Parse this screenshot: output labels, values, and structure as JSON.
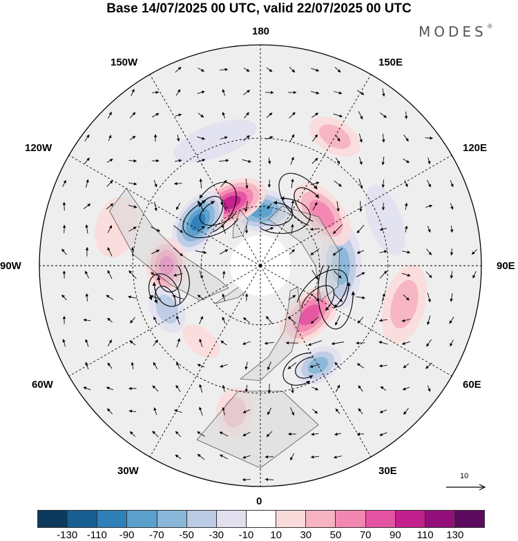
{
  "title": "Base 14/07/2025 00 UTC, valid 22/07/2025 00 UTC",
  "brand": "MODES",
  "brand_mark": "®",
  "longitude_labels": {
    "lon_180": "180",
    "lon_150e": "150E",
    "lon_120e": "120E",
    "lon_90e": "90E",
    "lon_60e": "60E",
    "lon_30e": "30E",
    "lon_0": "0",
    "lon_30w": "30W",
    "lon_60w": "60W",
    "lon_90w": "90W",
    "lon_120w": "120W",
    "lon_150w": "150W"
  },
  "reference_vector_value": "10",
  "colorbar": {
    "colors": [
      "#0d3a5c",
      "#1a5f91",
      "#2f7fb8",
      "#5b9fcc",
      "#8ab6d9",
      "#bccbe4",
      "#e2e0ef",
      "#ffffff",
      "#fadbdb",
      "#f7b3c2",
      "#f287b1",
      "#e554a3",
      "#c2218d",
      "#93107a",
      "#5c0a5e"
    ],
    "labels": [
      "-130",
      "-110",
      "-90",
      "-70",
      "-50",
      "-30",
      "-10",
      "10",
      "30",
      "50",
      "70",
      "90",
      "110",
      "130"
    ]
  },
  "anomaly_cells": [
    {
      "lon": 180,
      "lat": 62,
      "value": -75,
      "rx": 11,
      "ry": 5
    },
    {
      "lon": 205,
      "lat": 55,
      "value": 95,
      "rx": 12,
      "ry": 5
    },
    {
      "lon": 235,
      "lat": 52,
      "value": -90,
      "rx": 11,
      "ry": 5
    },
    {
      "lon": 270,
      "lat": 44,
      "value": 75,
      "rx": 9,
      "ry": 5
    },
    {
      "lon": 295,
      "lat": 40,
      "value": -45,
      "rx": 8,
      "ry": 4
    },
    {
      "lon": 322,
      "lat": 43,
      "value": 22,
      "rx": 7,
      "ry": 3
    },
    {
      "lon": 350,
      "lat": 22,
      "value": 30,
      "rx": 6,
      "ry": 6
    },
    {
      "lon": 30,
      "lat": 35,
      "value": -55,
      "rx": 8,
      "ry": 4
    },
    {
      "lon": 45,
      "lat": 55,
      "value": 75,
      "rx": 12,
      "ry": 5
    },
    {
      "lon": 75,
      "lat": 22,
      "value": 35,
      "rx": 13,
      "ry": 5
    },
    {
      "lon": 90,
      "lat": 50,
      "value": -60,
      "rx": 14,
      "ry": 5
    },
    {
      "lon": 130,
      "lat": 50,
      "value": 65,
      "rx": 12,
      "ry": 5
    },
    {
      "lon": 150,
      "lat": 22,
      "value": 30,
      "rx": 9,
      "ry": 4
    },
    {
      "lon": 110,
      "lat": 28,
      "value": -20,
      "rx": 12,
      "ry": 4
    },
    {
      "lon": 255,
      "lat": 22,
      "value": 25,
      "rx": 10,
      "ry": 5
    },
    {
      "lon": 200,
      "lat": 28,
      "value": -15,
      "rx": 14,
      "ry": 4
    }
  ]
}
